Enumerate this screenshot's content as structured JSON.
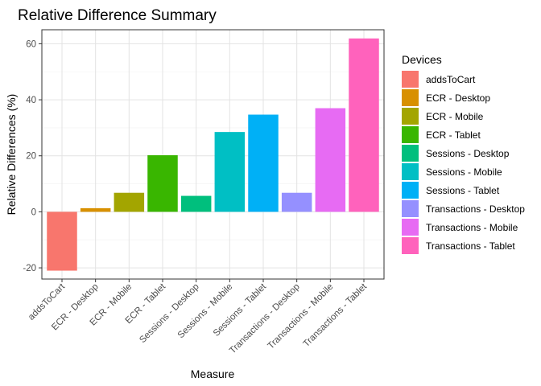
{
  "chart_data": {
    "type": "bar",
    "title": "Relative Difference Summary",
    "xlabel": "Measure",
    "ylabel": "Relative Differences (%)",
    "ylim": [
      -24,
      65
    ],
    "yticks": [
      -20,
      0,
      20,
      40,
      60
    ],
    "grid": true,
    "categories": [
      "addsToCart",
      "ECR - Desktop",
      "ECR - Mobile",
      "ECR - Tablet",
      "Sessions - Desktop",
      "Sessions - Mobile",
      "Sessions - Tablet",
      "Transactions - Desktop",
      "Transactions - Mobile",
      "Transactions - Tablet"
    ],
    "values": [
      -21,
      1.3,
      6.8,
      20.2,
      5.7,
      28.5,
      34.7,
      6.8,
      37.0,
      61.9
    ],
    "colors": [
      "#F8766D",
      "#D89000",
      "#A3A500",
      "#39B600",
      "#00BF7D",
      "#00BFC4",
      "#00B0F6",
      "#9590FF",
      "#E76BF3",
      "#FF62BC"
    ],
    "legend": {
      "title": "Devices",
      "position": "right",
      "entries": [
        "addsToCart",
        "ECR - Desktop",
        "ECR - Mobile",
        "ECR - Tablet",
        "Sessions - Desktop",
        "Sessions - Mobile",
        "Sessions - Tablet",
        "Transactions - Desktop",
        "Transactions - Mobile",
        "Transactions - Tablet"
      ]
    }
  }
}
